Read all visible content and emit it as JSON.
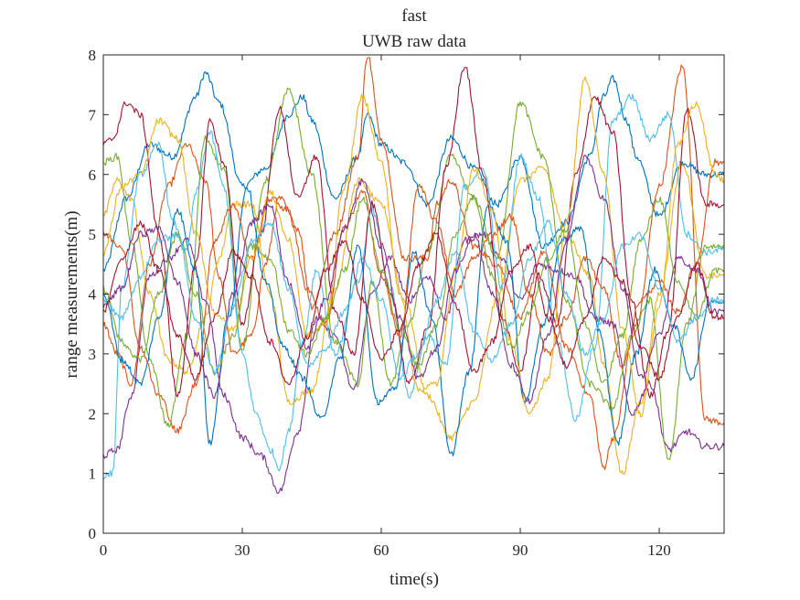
{
  "chart_data": {
    "type": "line",
    "title": "fast",
    "subtitle": "UWB raw data",
    "xlabel": "time(s)",
    "ylabel": "range measurements(m)",
    "xlim": [
      0,
      134
    ],
    "ylim": [
      0,
      8
    ],
    "xticks": [
      0,
      30,
      60,
      90,
      120
    ],
    "yticks": [
      0,
      1,
      2,
      3,
      4,
      5,
      6,
      7,
      8
    ],
    "grid": false,
    "legend": "none",
    "series": [
      {
        "color": "#0072BD",
        "x": [
          0,
          5,
          10,
          15,
          20,
          22,
          25,
          30,
          35,
          40,
          43,
          45,
          50,
          55,
          57,
          60,
          65,
          70,
          75,
          80,
          85,
          90,
          95,
          100,
          105,
          108,
          110,
          113,
          115,
          120,
          125,
          130,
          134
        ],
        "y": [
          4.4,
          5.6,
          6.5,
          6.3,
          7.3,
          7.7,
          7.2,
          5.8,
          6.1,
          7.0,
          7.3,
          6.9,
          5.6,
          6.3,
          7.0,
          6.5,
          6.2,
          5.5,
          6.6,
          6.1,
          5.5,
          6.3,
          4.8,
          5.2,
          6.3,
          7.3,
          7.6,
          6.9,
          6.3,
          5.3,
          6.2,
          6.0,
          6.0
        ]
      },
      {
        "color": "#D95319",
        "x": [
          0,
          3,
          6,
          10,
          14,
          18,
          22,
          25,
          28,
          32,
          35,
          38,
          42,
          45,
          50,
          55,
          57,
          60,
          65,
          70,
          72,
          75,
          80,
          85,
          90,
          95,
          100,
          105,
          108,
          110,
          115,
          120,
          125,
          130,
          134
        ],
        "y": [
          3.5,
          3.0,
          2.5,
          4.5,
          5.8,
          6.5,
          5.9,
          4.3,
          3.0,
          3.3,
          4.5,
          5.6,
          5.1,
          3.8,
          5.0,
          6.3,
          8.0,
          6.6,
          4.6,
          4.6,
          5.5,
          5.9,
          4.8,
          4.5,
          3.6,
          4.7,
          3.1,
          2.3,
          1.1,
          1.6,
          3.5,
          5.8,
          7.8,
          1.9,
          1.85
        ]
      },
      {
        "color": "#EDB120",
        "x": [
          0,
          3,
          6,
          10,
          14,
          18,
          22,
          25,
          28,
          32,
          36,
          40,
          45,
          50,
          55,
          60,
          65,
          70,
          75,
          80,
          85,
          90,
          95,
          100,
          105,
          108,
          112,
          116,
          120,
          125,
          130,
          134
        ],
        "y": [
          5.3,
          5.9,
          5.6,
          4.0,
          2.9,
          2.7,
          3.6,
          4.6,
          5.5,
          5.5,
          4.0,
          2.2,
          2.4,
          4.1,
          5.9,
          5.5,
          3.9,
          2.3,
          1.6,
          2.2,
          3.9,
          5.9,
          6.1,
          5.0,
          4.3,
          2.8,
          1.0,
          2.2,
          4.0,
          6.2,
          4.3,
          4.3
        ]
      },
      {
        "color": "#7E2F8E",
        "x": [
          0,
          3,
          6,
          10,
          14,
          18,
          22,
          26,
          30,
          34,
          38,
          42,
          46,
          50,
          54,
          58,
          62,
          66,
          70,
          74,
          78,
          82,
          86,
          90,
          94,
          98,
          102,
          106,
          110,
          114,
          118,
          122,
          126,
          130,
          134
        ],
        "y": [
          1.3,
          1.4,
          2.3,
          4.3,
          4.6,
          4.9,
          3.9,
          2.3,
          1.6,
          1.3,
          0.7,
          1.7,
          3.6,
          3.3,
          2.4,
          4.0,
          4.6,
          3.9,
          4.3,
          3.6,
          4.9,
          5.0,
          4.6,
          3.9,
          4.5,
          4.4,
          4.3,
          3.6,
          3.5,
          2.0,
          2.5,
          1.4,
          1.7,
          1.45,
          1.45
        ]
      },
      {
        "color": "#77AC30",
        "x": [
          0,
          3,
          6,
          10,
          14,
          18,
          22,
          26,
          30,
          35,
          40,
          45,
          50,
          55,
          58,
          62,
          66,
          70,
          75,
          80,
          85,
          90,
          95,
          100,
          105,
          110,
          114,
          118,
          122,
          126,
          130,
          134
        ],
        "y": [
          6.2,
          6.3,
          4.9,
          2.9,
          1.8,
          3.3,
          6.6,
          6.1,
          3.1,
          5.9,
          7.4,
          6.0,
          3.2,
          2.5,
          4.2,
          2.5,
          3.5,
          4.7,
          6.3,
          5.6,
          4.6,
          7.2,
          6.3,
          3.9,
          2.5,
          2.1,
          3.3,
          3.9,
          1.2,
          3.5,
          4.8,
          4.8
        ]
      },
      {
        "color": "#4DBEEE",
        "x": [
          0,
          2,
          4,
          8,
          12,
          15,
          18,
          20,
          23,
          26,
          30,
          33,
          36,
          38,
          40,
          43,
          46,
          50,
          55,
          58,
          62,
          66,
          70,
          74,
          78,
          82,
          86,
          90,
          94,
          98,
          102,
          106,
          110,
          114,
          118,
          122,
          126,
          130,
          134
        ],
        "y": [
          0.95,
          1.0,
          4.1,
          6.0,
          6.5,
          5.2,
          4.7,
          5.7,
          6.7,
          5.8,
          3.0,
          2.0,
          1.4,
          1.1,
          1.7,
          3.2,
          4.4,
          3.0,
          4.2,
          5.4,
          4.1,
          2.3,
          3.3,
          2.8,
          5.8,
          6.1,
          4.1,
          6.3,
          5.6,
          3.2,
          1.9,
          3.1,
          6.9,
          7.3,
          6.6,
          7.0,
          5.0,
          4.7,
          4.75
        ]
      },
      {
        "color": "#A2142F",
        "x": [
          0,
          2,
          5,
          8,
          12,
          16,
          20,
          23,
          26,
          30,
          34,
          38,
          42,
          46,
          50,
          54,
          58,
          62,
          66,
          70,
          74,
          78,
          82,
          86,
          90,
          94,
          98,
          102,
          106,
          110,
          114,
          118,
          122,
          126,
          130,
          134
        ],
        "y": [
          6.5,
          6.6,
          7.2,
          7.0,
          5.0,
          2.3,
          4.5,
          6.9,
          6.2,
          3.5,
          5.0,
          7.1,
          5.6,
          6.3,
          3.7,
          3.0,
          5.5,
          4.0,
          2.5,
          3.4,
          6.1,
          7.8,
          6.0,
          3.6,
          2.7,
          4.3,
          3.5,
          6.0,
          7.3,
          6.7,
          3.9,
          2.3,
          3.4,
          7.1,
          5.5,
          5.5
        ]
      },
      {
        "color": "#0072BD",
        "x": [
          0,
          4,
          8,
          12,
          16,
          20,
          23,
          27,
          31,
          35,
          39,
          43,
          47,
          51,
          55,
          59,
          63,
          67,
          71,
          75,
          79,
          83,
          87,
          91,
          95,
          99,
          103,
          107,
          111,
          115,
          119,
          123,
          127,
          131,
          134
        ],
        "y": [
          4.0,
          2.9,
          2.5,
          3.6,
          5.4,
          4.4,
          1.5,
          3.6,
          5.8,
          4.2,
          3.1,
          2.6,
          1.9,
          2.9,
          4.8,
          2.2,
          2.4,
          4.7,
          3.6,
          1.3,
          2.7,
          5.5,
          4.9,
          2.2,
          3.5,
          4.9,
          5.1,
          3.4,
          1.5,
          3.0,
          4.4,
          3.5,
          2.6,
          3.9,
          3.85
        ]
      },
      {
        "color": "#D95319",
        "x": [
          0,
          4,
          8,
          12,
          16,
          20,
          24,
          28,
          32,
          36,
          40,
          44,
          48,
          52,
          56,
          60,
          64,
          68,
          72,
          76,
          80,
          84,
          88,
          92,
          96,
          100,
          104,
          108,
          112,
          116,
          120,
          124,
          128,
          132,
          134
        ],
        "y": [
          5.0,
          4.8,
          3.1,
          2.3,
          1.7,
          2.5,
          4.9,
          5.5,
          4.6,
          5.6,
          5.4,
          4.1,
          3.5,
          5.1,
          5.7,
          4.3,
          3.3,
          5.8,
          5.2,
          4.0,
          4.6,
          5.0,
          5.3,
          4.0,
          3.0,
          3.6,
          4.6,
          4.1,
          2.8,
          3.9,
          4.2,
          3.7,
          4.5,
          6.2,
          6.2
        ]
      },
      {
        "color": "#EDB120",
        "x": [
          0,
          4,
          8,
          12,
          16,
          20,
          24,
          28,
          32,
          36,
          40,
          44,
          48,
          52,
          56,
          60,
          64,
          68,
          72,
          76,
          80,
          84,
          88,
          92,
          96,
          100,
          104,
          108,
          112,
          116,
          120,
          124,
          128,
          132,
          134
        ],
        "y": [
          4.7,
          5.8,
          6.0,
          6.9,
          6.6,
          5.0,
          3.7,
          3.4,
          4.6,
          5.7,
          4.9,
          3.3,
          3.5,
          5.8,
          7.3,
          6.2,
          4.0,
          2.4,
          2.5,
          4.4,
          6.1,
          5.4,
          3.2,
          2.0,
          2.6,
          5.2,
          7.6,
          6.0,
          3.4,
          2.0,
          3.8,
          6.5,
          7.2,
          6.0,
          5.9
        ]
      },
      {
        "color": "#7E2F8E",
        "x": [
          0,
          4,
          8,
          12,
          16,
          20,
          24,
          28,
          32,
          36,
          40,
          44,
          48,
          52,
          56,
          60,
          64,
          68,
          72,
          76,
          80,
          84,
          88,
          92,
          96,
          100,
          104,
          108,
          112,
          116,
          120,
          124,
          128,
          132,
          134
        ],
        "y": [
          3.8,
          4.1,
          5.0,
          5.1,
          4.2,
          3.0,
          2.3,
          4.0,
          5.2,
          5.5,
          4.2,
          3.1,
          3.9,
          5.1,
          5.9,
          4.8,
          3.6,
          2.6,
          3.1,
          4.4,
          5.0,
          4.0,
          2.8,
          2.2,
          3.3,
          4.9,
          6.3,
          5.6,
          4.1,
          2.6,
          3.3,
          4.6,
          4.4,
          3.7,
          3.7
        ]
      },
      {
        "color": "#77AC30",
        "x": [
          0,
          4,
          8,
          12,
          16,
          20,
          24,
          28,
          32,
          36,
          40,
          44,
          48,
          52,
          56,
          60,
          64,
          68,
          72,
          76,
          80,
          84,
          88,
          92,
          96,
          100,
          104,
          108,
          112,
          116,
          120,
          124,
          128,
          132,
          134
        ],
        "y": [
          4.1,
          3.2,
          2.9,
          4.0,
          5.0,
          4.0,
          2.7,
          3.3,
          4.8,
          4.6,
          3.4,
          3.0,
          3.6,
          4.4,
          5.6,
          4.4,
          3.4,
          2.8,
          3.5,
          5.0,
          5.6,
          4.3,
          3.1,
          3.7,
          4.6,
          5.1,
          3.5,
          2.5,
          3.3,
          4.9,
          5.6,
          4.2,
          3.6,
          4.4,
          4.4
        ]
      },
      {
        "color": "#4DBEEE",
        "x": [
          0,
          4,
          8,
          12,
          16,
          20,
          24,
          28,
          32,
          36,
          40,
          44,
          48,
          52,
          56,
          60,
          64,
          68,
          72,
          76,
          80,
          84,
          88,
          92,
          96,
          100,
          104,
          108,
          112,
          116,
          120,
          124,
          128,
          132,
          134
        ],
        "y": [
          3.9,
          3.6,
          4.3,
          4.9,
          5.0,
          3.6,
          2.7,
          3.8,
          4.9,
          5.2,
          4.1,
          2.8,
          3.1,
          3.7,
          4.6,
          3.9,
          2.6,
          3.0,
          3.9,
          4.7,
          3.4,
          2.9,
          3.5,
          4.6,
          5.2,
          4.0,
          3.0,
          3.6,
          4.8,
          5.0,
          4.1,
          3.2,
          3.6,
          3.9,
          3.9
        ]
      },
      {
        "color": "#A2142F",
        "x": [
          0,
          4,
          8,
          12,
          16,
          20,
          24,
          28,
          32,
          36,
          40,
          44,
          48,
          52,
          56,
          60,
          64,
          68,
          72,
          76,
          80,
          84,
          88,
          92,
          96,
          100,
          104,
          108,
          112,
          116,
          120,
          124,
          128,
          132,
          134
        ],
        "y": [
          3.7,
          4.6,
          5.2,
          4.4,
          3.3,
          2.6,
          3.6,
          4.7,
          4.3,
          3.2,
          2.5,
          3.3,
          4.4,
          4.9,
          3.9,
          2.9,
          3.4,
          4.5,
          5.0,
          3.8,
          2.7,
          3.2,
          4.4,
          4.8,
          3.6,
          2.8,
          3.6,
          4.6,
          4.2,
          3.1,
          2.6,
          3.6,
          4.5,
          3.6,
          3.6
        ]
      }
    ]
  }
}
